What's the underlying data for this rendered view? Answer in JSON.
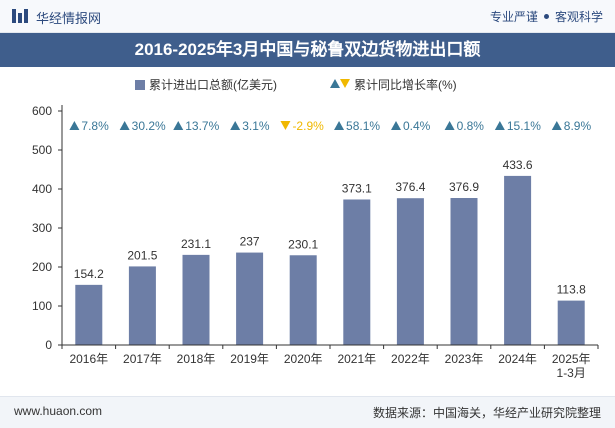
{
  "header": {
    "brand": "华经情报网",
    "tag1": "专业严谨",
    "tag2": "客观科学"
  },
  "chart_data": {
    "type": "bar",
    "title": "2016-2025年3月中国与秘鲁双边货物进出口额",
    "categories": [
      "2016年",
      "2017年",
      "2018年",
      "2019年",
      "2020年",
      "2021年",
      "2022年",
      "2023年",
      "2024年",
      "2025年\n1-3月"
    ],
    "series": [
      {
        "name": "累计进出口总额(亿美元)",
        "type": "bar",
        "values": [
          154.2,
          201.5,
          231.1,
          237,
          230.1,
          373.1,
          376.4,
          376.9,
          433.6,
          113.8
        ],
        "value_labels": [
          "154.2",
          "201.5",
          "231.1",
          "237",
          "230.1",
          "373.1",
          "376.4",
          "376.9",
          "433.6",
          "113.8"
        ]
      },
      {
        "name": "累计同比增长率(%)",
        "type": "marker",
        "values": [
          7.8,
          30.2,
          13.7,
          3.1,
          -2.9,
          58.1,
          0.4,
          0.8,
          15.1,
          8.9
        ],
        "value_labels": [
          "7.8%",
          "30.2%",
          "13.7%",
          "3.1%",
          "-2.9%",
          "58.1%",
          "0.4%",
          "0.8%",
          "15.1%",
          "8.9%"
        ]
      }
    ],
    "ylim": [
      0,
      600
    ],
    "yticks": [
      0,
      100,
      200,
      300,
      400,
      500,
      600
    ],
    "xlabel": "",
    "ylabel": "",
    "grid": false,
    "legend_position": "top",
    "colors": {
      "bar": "#6d7ea6",
      "up": "#3a7797",
      "down": "#f0b800"
    }
  },
  "footer": {
    "website": "www.huaon.com",
    "source": "数据来源：中国海关，华经产业研究院整理"
  }
}
